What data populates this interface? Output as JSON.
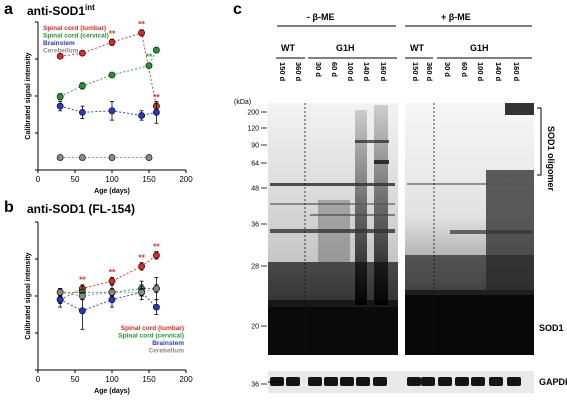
{
  "panels": {
    "a": {
      "letter": "a",
      "title": "anti-SOD1",
      "title_sup": "int"
    },
    "b": {
      "letter": "b",
      "title": "anti-SOD1 (FL-154)"
    },
    "c": {
      "letter": "c"
    }
  },
  "chart_data": [
    {
      "type": "scatter",
      "panel": "a",
      "title": "anti-SOD1int",
      "xlabel": "Age (days)",
      "ylabel": "Calibrated signal intensity",
      "xlim": [
        0,
        200
      ],
      "xticks": [
        "0",
        "50",
        "100",
        "150",
        "200"
      ],
      "legend_placement": "top-left",
      "series": [
        {
          "name": "Spinal cord (lumbar)",
          "color": "#e8251c",
          "x": [
            30,
            60,
            100,
            140,
            160
          ],
          "y": [
            0.78,
            0.8,
            0.87,
            0.93,
            0.46
          ],
          "err": [
            0.01,
            0.01,
            0.02,
            0.02,
            0.02
          ],
          "stars": [
            "",
            "",
            "**",
            "**",
            "**"
          ]
        },
        {
          "name": "Spinal cord (cervical)",
          "color": "#1f9a2f",
          "x": [
            30,
            60,
            100,
            150,
            160
          ],
          "y": [
            0.52,
            0.59,
            0.66,
            0.72,
            0.82
          ],
          "err": [
            0.02,
            0.02,
            0.01,
            0.01,
            0.01
          ],
          "stars": [
            "",
            "",
            "",
            "**",
            ""
          ]
        },
        {
          "name": "Brainstem",
          "color": "#2535d6",
          "x": [
            30,
            60,
            100,
            140,
            160
          ],
          "y": [
            0.46,
            0.42,
            0.43,
            0.4,
            0.42
          ],
          "err": [
            0.03,
            0.04,
            0.06,
            0.03,
            0.07
          ],
          "stars": []
        },
        {
          "name": "Cerebellum",
          "color": "#8a8a8a",
          "x": [
            30,
            60,
            100,
            150
          ],
          "y": [
            0.13,
            0.13,
            0.13,
            0.13
          ],
          "err": [
            0.01,
            0.01,
            0.01,
            0.01
          ],
          "stars": []
        }
      ]
    },
    {
      "type": "scatter",
      "panel": "b",
      "title": "anti-SOD1 (FL-154)",
      "xlabel": "Age (days)",
      "ylabel": "Calibrated signal intensity",
      "xlim": [
        0,
        200
      ],
      "xticks": [
        "0",
        "50",
        "100",
        "150",
        "200"
      ],
      "legend_placement": "bottom-right",
      "series": [
        {
          "name": "Spinal cord (lumbar)",
          "color": "#e8251c",
          "x": [
            30,
            60,
            100,
            140,
            160
          ],
          "y": [
            0.49,
            0.52,
            0.54,
            0.58,
            0.61
          ],
          "err": [
            0.01,
            0.01,
            0.01,
            0.01,
            0.01
          ],
          "stars": [
            "",
            "**",
            "**",
            "**",
            "**"
          ]
        },
        {
          "name": "Spinal cord (cervical)",
          "color": "#1f9a2f",
          "x": [
            30,
            60,
            100,
            140,
            160
          ],
          "y": [
            0.51,
            0.51,
            0.51,
            0.52,
            0.52
          ],
          "err": [
            0.01,
            0.02,
            0.02,
            0.02,
            0.03
          ],
          "stars": []
        },
        {
          "name": "Brainstem",
          "color": "#2535d6",
          "x": [
            30,
            60,
            100,
            140,
            160
          ],
          "y": [
            0.49,
            0.46,
            0.49,
            0.51,
            0.47
          ],
          "err": [
            0.02,
            0.05,
            0.02,
            0.02,
            0.02
          ],
          "stars": []
        },
        {
          "name": "Cerebellum",
          "color": "#8a8a8a",
          "x": [
            30,
            60,
            100,
            140,
            160
          ],
          "y": [
            0.51,
            0.5,
            0.51,
            0.51,
            0.52
          ],
          "err": [
            0.01,
            0.01,
            0.01,
            0.01,
            0.01
          ],
          "stars": []
        }
      ]
    }
  ],
  "blot": {
    "conditions": [
      {
        "label": "- β-ME"
      },
      {
        "label": "+ β-ME"
      }
    ],
    "groups": [
      "WT",
      "G1H"
    ],
    "wt_lanes": [
      "150 d",
      "360 d"
    ],
    "g1h_lanes": [
      "30 d",
      "60 d",
      "100 d",
      "140 d",
      "160 d"
    ],
    "kda_label": "(kDa)",
    "markers": [
      "200",
      "120",
      "90",
      "64",
      "48",
      "36",
      "28",
      "20",
      "36"
    ],
    "oligomer_label": "SOD1 oligomer",
    "sod1_label": "SOD1",
    "gapdh_label": "GAPDH"
  }
}
